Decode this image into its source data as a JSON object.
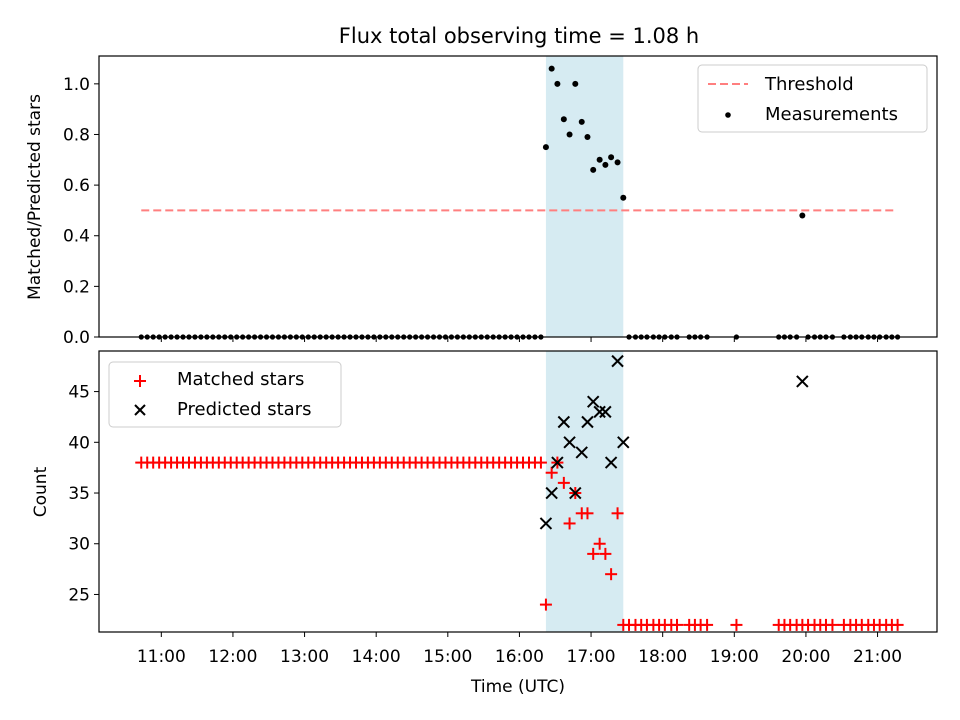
{
  "chart_data": [
    {
      "type": "scatter",
      "panel": "top",
      "title": "Flux total observing time = 1.08 h",
      "xlabel": "",
      "ylabel": "Matched/Predicted stars",
      "xlim": [
        10.13,
        21.83
      ],
      "ylim": [
        0.0,
        1.11
      ],
      "yticks": [
        0.0,
        0.2,
        0.4,
        0.6,
        0.8,
        1.0
      ],
      "ytick_labels": [
        "0.0",
        "0.2",
        "0.4",
        "0.6",
        "0.8",
        "1.0"
      ],
      "shaded_region": {
        "x_start": 16.37,
        "x_end": 17.45,
        "color": "#add8e6"
      },
      "threshold": {
        "name": "Threshold",
        "y": 0.5,
        "x_start": 10.72,
        "x_end": 21.22,
        "color": "#ff7f7f"
      },
      "legend": {
        "position": "top-right",
        "entries": [
          "Threshold",
          "Measurements"
        ]
      },
      "series": [
        {
          "name": "Measurements",
          "color": "#000000",
          "points": [
            [
              16.37,
              0.75
            ],
            [
              16.45,
              1.06
            ],
            [
              16.53,
              1.0
            ],
            [
              16.62,
              0.86
            ],
            [
              16.7,
              0.8
            ],
            [
              16.78,
              1.0
            ],
            [
              16.87,
              0.85
            ],
            [
              16.95,
              0.79
            ],
            [
              17.03,
              0.66
            ],
            [
              17.12,
              0.7
            ],
            [
              17.2,
              0.68
            ],
            [
              17.28,
              0.71
            ],
            [
              17.37,
              0.69
            ],
            [
              17.45,
              0.55
            ],
            [
              19.95,
              0.48
            ]
          ]
        }
      ]
    },
    {
      "type": "scatter",
      "panel": "bottom",
      "xlabel": "Time (UTC)",
      "ylabel": "Count",
      "xlim": [
        10.13,
        21.83
      ],
      "ylim": [
        21.3,
        49.0
      ],
      "xticks": [
        11,
        12,
        13,
        14,
        15,
        16,
        17,
        18,
        19,
        20,
        21
      ],
      "xtick_labels": [
        "11:00",
        "12:00",
        "13:00",
        "14:00",
        "15:00",
        "16:00",
        "17:00",
        "18:00",
        "19:00",
        "20:00",
        "21:00"
      ],
      "yticks": [
        25,
        30,
        35,
        40,
        45
      ],
      "ytick_labels": [
        "25",
        "30",
        "35",
        "40",
        "45"
      ],
      "shaded_region": {
        "x_start": 16.37,
        "x_end": 17.45,
        "color": "#add8e6"
      },
      "legend": {
        "position": "top-left",
        "entries": [
          "Matched stars",
          "Predicted stars"
        ]
      },
      "series": [
        {
          "name": "Matched stars",
          "marker": "plus",
          "color": "#ff0000",
          "constant_runs": [
            {
              "y": 38,
              "x_start": 10.72,
              "x_end": 16.3,
              "count": 68
            }
          ],
          "points": [
            [
              16.37,
              24
            ],
            [
              16.45,
              37
            ],
            [
              16.53,
              38
            ],
            [
              16.62,
              36
            ],
            [
              16.7,
              32
            ],
            [
              16.78,
              35
            ],
            [
              16.87,
              33
            ],
            [
              16.95,
              33
            ],
            [
              17.03,
              29
            ],
            [
              17.12,
              30
            ],
            [
              17.2,
              29
            ],
            [
              17.28,
              27
            ],
            [
              17.37,
              33
            ],
            [
              17.45,
              22
            ],
            [
              17.53,
              22
            ],
            [
              17.62,
              22
            ],
            [
              17.7,
              22
            ],
            [
              17.78,
              22
            ],
            [
              17.87,
              22
            ],
            [
              17.95,
              22
            ],
            [
              18.03,
              22
            ],
            [
              18.12,
              22
            ],
            [
              18.2,
              22
            ],
            [
              18.37,
              22
            ],
            [
              18.45,
              22
            ],
            [
              18.53,
              22
            ],
            [
              18.62,
              22
            ],
            [
              19.03,
              22
            ],
            [
              19.62,
              22
            ],
            [
              19.7,
              22
            ],
            [
              19.78,
              22
            ],
            [
              19.87,
              22
            ],
            [
              19.95,
              22
            ],
            [
              20.03,
              22
            ],
            [
              20.12,
              22
            ],
            [
              20.2,
              22
            ],
            [
              20.28,
              22
            ],
            [
              20.37,
              22
            ],
            [
              20.53,
              22
            ],
            [
              20.62,
              22
            ],
            [
              20.7,
              22
            ],
            [
              20.78,
              22
            ],
            [
              20.87,
              22
            ],
            [
              20.95,
              22
            ],
            [
              21.03,
              22
            ],
            [
              21.12,
              22
            ],
            [
              21.2,
              22
            ],
            [
              21.28,
              22
            ]
          ]
        },
        {
          "name": "Predicted stars",
          "marker": "x",
          "color": "#000000",
          "points": [
            [
              16.37,
              32
            ],
            [
              16.45,
              35
            ],
            [
              16.53,
              38
            ],
            [
              16.62,
              42
            ],
            [
              16.7,
              40
            ],
            [
              16.78,
              35
            ],
            [
              16.87,
              39
            ],
            [
              16.95,
              42
            ],
            [
              17.03,
              44
            ],
            [
              17.12,
              43
            ],
            [
              17.2,
              43
            ],
            [
              17.28,
              38
            ],
            [
              17.37,
              48
            ],
            [
              17.45,
              40
            ],
            [
              19.95,
              46
            ]
          ]
        }
      ],
      "top_zero_markers": {
        "note": "Zero-valued measurements drawn at y=0 in the top panel",
        "runs": [
          {
            "x_start": 10.72,
            "x_end": 16.3,
            "count": 68
          }
        ],
        "points": [
          17.53,
          17.62,
          17.7,
          17.78,
          17.87,
          17.95,
          18.03,
          18.12,
          18.2,
          18.37,
          18.45,
          18.53,
          18.62,
          19.03,
          19.62,
          19.7,
          19.78,
          19.87,
          20.03,
          20.12,
          20.2,
          20.28,
          20.37,
          20.53,
          20.62,
          20.7,
          20.78,
          20.87,
          20.95,
          21.03,
          21.12,
          21.2,
          21.28
        ]
      }
    }
  ]
}
